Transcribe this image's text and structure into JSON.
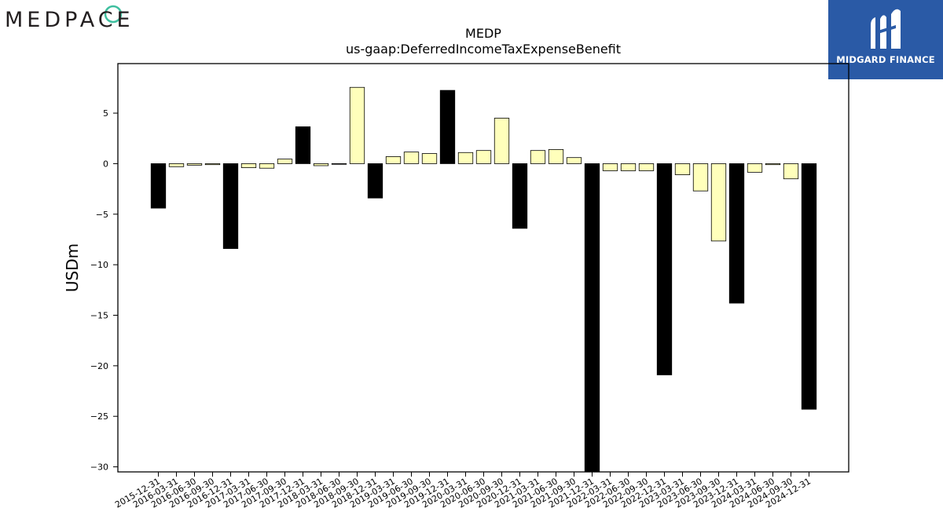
{
  "logos": {
    "left_text": "MEDPACE",
    "right_text": "MIDGARD FINANCE",
    "left_color": "#231f20",
    "left_accent": "#3fbf9f",
    "right_bg": "#2a5aa6"
  },
  "chart_data": {
    "type": "bar",
    "title": "MEDP",
    "subtitle": "us-gaap:DeferredIncomeTaxExpenseBenefit",
    "xlabel": "",
    "ylabel": "USDm",
    "ylim": [
      -30.5,
      9.9
    ],
    "yticks": [
      5,
      0,
      -5,
      -10,
      -15,
      -20,
      -25,
      -30
    ],
    "ytick_labels": [
      "5",
      "0",
      "−5",
      "−10",
      "−15",
      "−20",
      "−25",
      "−30"
    ],
    "grid": false,
    "legend": "none",
    "colors": {
      "annual": "#000000",
      "quarterly": "#ffffbb",
      "edge": "#000000"
    },
    "categories": [
      "2015-12-31",
      "2016-03-31",
      "2016-06-30",
      "2016-09-30",
      "2016-12-31",
      "2017-03-31",
      "2017-06-30",
      "2017-09-30",
      "2017-12-31",
      "2018-03-31",
      "2018-06-30",
      "2018-09-30",
      "2018-12-31",
      "2019-03-31",
      "2019-06-30",
      "2019-09-30",
      "2019-12-31",
      "2020-03-31",
      "2020-06-30",
      "2020-09-30",
      "2020-12-31",
      "2021-03-31",
      "2021-06-30",
      "2021-09-30",
      "2021-12-31",
      "2022-03-31",
      "2022-06-30",
      "2022-09-30",
      "2022-12-31",
      "2023-03-31",
      "2023-06-30",
      "2023-09-30",
      "2023-12-31",
      "2024-03-31",
      "2024-06-30",
      "2024-09-30",
      "2024-12-31"
    ],
    "values": [
      -4.4,
      -0.3,
      -0.15,
      -0.1,
      -8.4,
      -0.4,
      -0.45,
      0.45,
      3.65,
      -0.2,
      -0.05,
      7.55,
      -3.4,
      0.7,
      1.15,
      1.0,
      7.25,
      1.1,
      1.3,
      4.5,
      -6.4,
      1.3,
      1.4,
      0.6,
      -31.0,
      -0.7,
      -0.7,
      -0.7,
      -20.9,
      -1.1,
      -2.7,
      -7.65,
      -13.8,
      -0.85,
      -0.1,
      -1.5,
      -24.3
    ],
    "annual": [
      true,
      false,
      false,
      false,
      true,
      false,
      false,
      false,
      true,
      false,
      false,
      false,
      true,
      false,
      false,
      false,
      true,
      false,
      false,
      false,
      true,
      false,
      false,
      false,
      true,
      false,
      false,
      false,
      true,
      false,
      false,
      false,
      true,
      false,
      false,
      false,
      true
    ]
  }
}
